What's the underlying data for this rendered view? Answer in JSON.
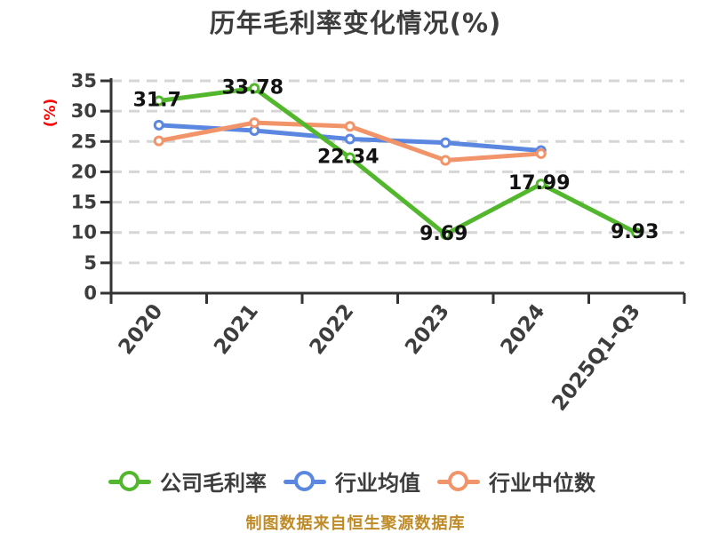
{
  "page": {
    "footer": "制图数据来自恒生聚源数据库"
  },
  "colors": {
    "background": "#ffffff",
    "title": "#3d3d3d",
    "axis": "#333333",
    "grid": "#d6d6d6",
    "tick_label": "#3d3d3d",
    "data_label": "#121212",
    "ylabel": "#ff0000",
    "footer": "#bf8b28",
    "marker_fill": "#ffffff"
  },
  "chart_data": {
    "type": "line",
    "title": "历年毛利率变化情况(%)",
    "xlabel": "",
    "ylabel": "(%)",
    "categories": [
      "2020",
      "2021",
      "2022",
      "2023",
      "2024",
      "2025Q1-Q3"
    ],
    "ylim": [
      0,
      35
    ],
    "yticks": [
      0,
      5,
      10,
      15,
      20,
      25,
      30,
      35
    ],
    "grid": true,
    "grid_style": "dashed",
    "legend_position": "bottom",
    "series": [
      {
        "name": "公司毛利率",
        "color": "#52b72d",
        "values": [
          31.7,
          33.78,
          22.34,
          9.69,
          17.99,
          9.93
        ],
        "labels": [
          "31.7",
          "33.78",
          "22.34",
          "9.69",
          "17.99",
          "9.93"
        ]
      },
      {
        "name": "行业均值",
        "color": "#5b87e0",
        "values": [
          27.7,
          26.8,
          25.4,
          24.8,
          23.5,
          null
        ]
      },
      {
        "name": "行业中位数",
        "color": "#f2946a",
        "values": [
          25.1,
          28.1,
          27.5,
          21.9,
          23.0,
          null
        ]
      }
    ]
  }
}
